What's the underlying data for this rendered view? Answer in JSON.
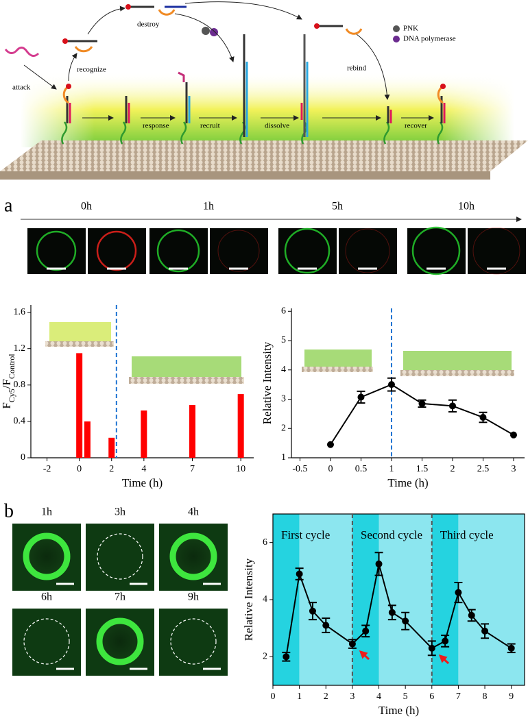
{
  "schematic": {
    "attack": "attack",
    "recognize": "recognize",
    "destroy": "destroy",
    "response": "response",
    "recruit": "recruit",
    "dissolve": "dissolve",
    "rebind": "rebind",
    "recover": "recover",
    "pnk": "PNK",
    "polymerase": "DNA polymerase"
  },
  "panel_a": {
    "label": "a",
    "times": [
      "0h",
      "1h",
      "5h",
      "10h"
    ]
  },
  "panel_b": {
    "label": "b",
    "times": [
      "1h",
      "3h",
      "4h",
      "6h",
      "7h",
      "9h"
    ]
  },
  "chart_data": [
    {
      "type": "bar",
      "x": [
        0,
        0.5,
        2,
        4,
        7,
        10
      ],
      "values": [
        1.15,
        0.4,
        0.22,
        0.52,
        0.58,
        0.7
      ],
      "color": "#ff0000",
      "xlim": [
        -3,
        10.8
      ],
      "xticks": [
        -2,
        0,
        2,
        4,
        7,
        10
      ],
      "ylim": [
        0,
        1.68
      ],
      "yticks": [
        0,
        0.4,
        0.8,
        1.2,
        1.6
      ],
      "xlabel": "Time (h)",
      "ylabel": [
        "F",
        "Cy5",
        "/F",
        "Control"
      ],
      "vlines": [
        2.3
      ],
      "vline_color": "#1e73d2",
      "frame": false
    },
    {
      "type": "line",
      "x": [
        0,
        0.5,
        1,
        1.5,
        2,
        2.5,
        3
      ],
      "values": [
        1.45,
        3.07,
        3.5,
        2.85,
        2.77,
        2.38,
        1.78
      ],
      "errors": [
        null,
        0.2,
        0.22,
        0.12,
        0.2,
        0.17,
        null
      ],
      "color": "#000000",
      "xlim": [
        -0.64,
        3.18
      ],
      "xticks": [
        -0.5,
        0,
        0.5,
        1,
        1.5,
        2,
        2.5,
        3
      ],
      "ylim": [
        1,
        6.1
      ],
      "yticks": [
        1,
        2,
        3,
        4,
        5,
        6
      ],
      "xlabel": "Time (h)",
      "ylabel": "Relative Intensity",
      "vlines": [
        1
      ],
      "vline_color": "#1e73d2",
      "frame": false
    },
    {
      "type": "line",
      "x": [
        0.5,
        1,
        1.5,
        2,
        3,
        3.5,
        4,
        4.5,
        5,
        6,
        6.5,
        7,
        7.5,
        8,
        9
      ],
      "values": [
        2.0,
        4.9,
        3.6,
        3.1,
        2.45,
        2.9,
        5.25,
        3.55,
        3.25,
        2.3,
        2.55,
        4.25,
        3.45,
        2.9,
        2.3
      ],
      "errors": [
        0.15,
        0.2,
        0.3,
        0.25,
        0.15,
        0.2,
        0.4,
        0.25,
        0.3,
        0.25,
        0.2,
        0.35,
        0.2,
        0.25,
        0.15
      ],
      "color": "#000000",
      "xlim": [
        0,
        9.5
      ],
      "xticks": [
        0,
        1,
        2,
        3,
        4,
        5,
        6,
        7,
        8,
        9
      ],
      "ylim": [
        1,
        7
      ],
      "yticks": [
        2,
        4,
        6
      ],
      "xlabel": "Time (h)",
      "ylabel": "Relative Intensity",
      "vlines": [
        3,
        6
      ],
      "vline_color": "#555555",
      "frame": true,
      "bands": [
        {
          "from": 0,
          "to": 1,
          "color": "#25d3e0"
        },
        {
          "from": 1,
          "to": 3,
          "color": "#8ce6ef"
        },
        {
          "from": 3,
          "to": 4,
          "color": "#25d3e0"
        },
        {
          "from": 4,
          "to": 6,
          "color": "#8ce6ef"
        },
        {
          "from": 6,
          "to": 7,
          "color": "#25d3e0"
        },
        {
          "from": 7,
          "to": 9.5,
          "color": "#8ce6ef"
        }
      ],
      "annotations": [
        "First cycle",
        "Second cycle",
        "Third cycle"
      ]
    }
  ]
}
